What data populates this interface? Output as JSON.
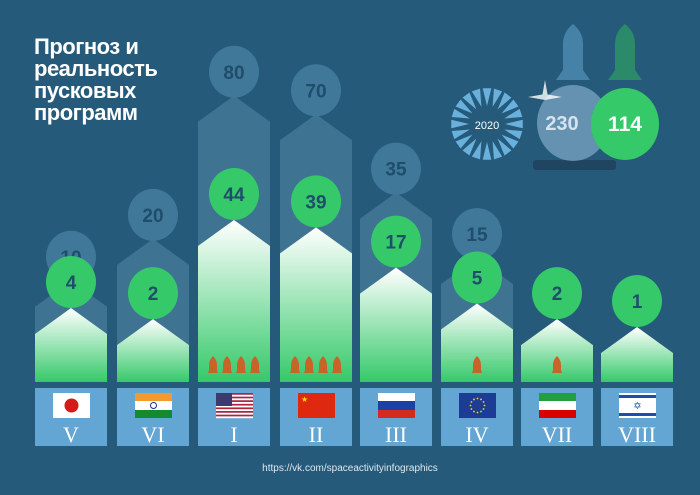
{
  "title": "Прогноз и реальность пусковых программ",
  "footer_url": "https://vk.com/spaceactivityinfographics",
  "summary": {
    "year": "2020",
    "forecast_total": "230",
    "actual_total": "114"
  },
  "colors": {
    "background": "#255a7a",
    "forecast": "#3f7898",
    "actual": "#35c96a",
    "label_box": "#64a6d3",
    "rocket": "#c8642a"
  },
  "chart_data": {
    "type": "bar",
    "title": "Прогноз и реальность пусковых программ",
    "series_names": [
      "forecast",
      "actual"
    ],
    "categories": [
      {
        "country": "Japan",
        "rank": "V",
        "forecast": 10,
        "actual": 4,
        "rockets": 0
      },
      {
        "country": "India",
        "rank": "VI",
        "forecast": 20,
        "actual": 2,
        "rockets": 0
      },
      {
        "country": "USA",
        "rank": "I",
        "forecast": 80,
        "actual": 44,
        "rockets": 4
      },
      {
        "country": "China",
        "rank": "II",
        "forecast": 70,
        "actual": 39,
        "rockets": 4
      },
      {
        "country": "Russia",
        "rank": "III",
        "forecast": 35,
        "actual": 17,
        "rockets": 0
      },
      {
        "country": "EU",
        "rank": "IV",
        "forecast": 15,
        "actual": 5,
        "rockets": 1
      },
      {
        "country": "Iran",
        "rank": "VII",
        "forecast": null,
        "actual": 2,
        "rockets": 1
      },
      {
        "country": "Israel",
        "rank": "VIII",
        "forecast": null,
        "actual": 1,
        "rockets": 0
      }
    ]
  }
}
